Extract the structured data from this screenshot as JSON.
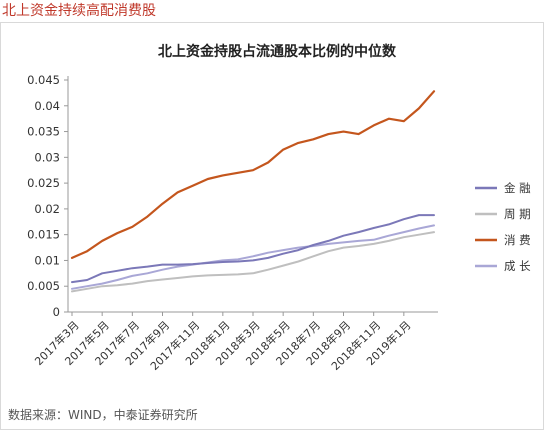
{
  "header": {
    "title": "北上资金持续高配消费股"
  },
  "footer": {
    "source": "数据来源：WIND，中泰证券研究所"
  },
  "colors": {
    "金融": "#7b78b8",
    "周期": "#bfbfbf",
    "消费": "#c4561d",
    "成长": "#a9a7d6",
    "title_red": "#c0392b"
  },
  "chart_data": {
    "type": "line",
    "title": "北上资金持股占流通股本比例的中位数",
    "xlabel": "",
    "ylabel": "",
    "ylim": [
      0,
      0.045
    ],
    "yticks": [
      "0",
      "0.005",
      "0.01",
      "0.015",
      "0.02",
      "0.025",
      "0.03",
      "0.035",
      "0.04",
      "0.045"
    ],
    "xticks": [
      "2017年3月",
      "2017年5月",
      "2017年7月",
      "2017年9月",
      "2017年11月",
      "2018年1月",
      "2018年3月",
      "2018年5月",
      "2018年7月",
      "2018年9月",
      "2018年11月",
      "2019年1月"
    ],
    "x": [
      "2017年3月",
      "2017年4月",
      "2017年5月",
      "2017年6月",
      "2017年7月",
      "2017年8月",
      "2017年9月",
      "2017年10月",
      "2017年11月",
      "2017年12月",
      "2018年1月",
      "2018年2月",
      "2018年3月",
      "2018年4月",
      "2018年5月",
      "2018年6月",
      "2018年7月",
      "2018年8月",
      "2018年9月",
      "2018年10月",
      "2018年11月",
      "2018年12月",
      "2019年1月",
      "2019年2月",
      "2019年3月"
    ],
    "grid": false,
    "legend_position": "right",
    "series": [
      {
        "name": "金融",
        "values": [
          0.0058,
          0.0062,
          0.0075,
          0.008,
          0.0085,
          0.0088,
          0.0092,
          0.0092,
          0.0093,
          0.0095,
          0.0097,
          0.0098,
          0.01,
          0.0105,
          0.0113,
          0.012,
          0.013,
          0.0138,
          0.0148,
          0.0155,
          0.0163,
          0.017,
          0.018,
          0.0188,
          0.0188
        ]
      },
      {
        "name": "周期",
        "values": [
          0.004,
          0.0045,
          0.005,
          0.0052,
          0.0055,
          0.006,
          0.0063,
          0.0066,
          0.0069,
          0.0071,
          0.0072,
          0.0073,
          0.0075,
          0.0082,
          0.009,
          0.0098,
          0.0108,
          0.0118,
          0.0125,
          0.0128,
          0.0132,
          0.0138,
          0.0145,
          0.015,
          0.0155
        ]
      },
      {
        "name": "消费",
        "values": [
          0.0105,
          0.0118,
          0.0138,
          0.0153,
          0.0165,
          0.0185,
          0.021,
          0.0232,
          0.0245,
          0.0258,
          0.0265,
          0.027,
          0.0275,
          0.029,
          0.0315,
          0.0328,
          0.0335,
          0.0345,
          0.035,
          0.0345,
          0.0362,
          0.0375,
          0.037,
          0.0395,
          0.0428
        ]
      },
      {
        "name": "成长",
        "values": [
          0.0045,
          0.005,
          0.0055,
          0.0062,
          0.007,
          0.0075,
          0.0082,
          0.0088,
          0.0092,
          0.0096,
          0.01,
          0.0102,
          0.0108,
          0.0115,
          0.012,
          0.0125,
          0.0128,
          0.0132,
          0.0135,
          0.0138,
          0.014,
          0.0148,
          0.0155,
          0.0162,
          0.0168
        ]
      }
    ]
  }
}
